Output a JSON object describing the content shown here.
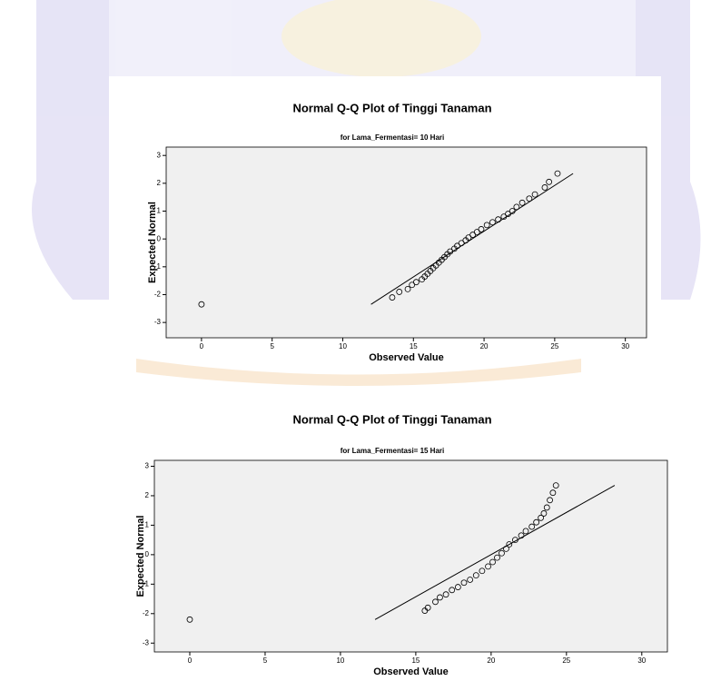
{
  "chart_data": [
    {
      "type": "scatter",
      "title": "Normal Q-Q Plot of Tinggi Tanaman",
      "subtitle": "for Lama_Fermentasi= 10 Hari",
      "x_label": "Observed Value",
      "y_label": "Expected Normal",
      "x": [
        0,
        13.5,
        14,
        14.6,
        14.9,
        15.2,
        15.6,
        15.8,
        16,
        16.2,
        16.4,
        16.6,
        16.8,
        17,
        17.2,
        17.4,
        17.6,
        17.9,
        18.1,
        18.4,
        18.7,
        18.9,
        19.2,
        19.5,
        19.8,
        20.2,
        20.6,
        21,
        21.4,
        21.7,
        22,
        22.3,
        22.7,
        23.2,
        23.6,
        24.3,
        24.6,
        25.2
      ],
      "values": [
        -2.35,
        -2.1,
        -1.9,
        -1.8,
        -1.65,
        -1.55,
        -1.45,
        -1.35,
        -1.25,
        -1.15,
        -1.05,
        -0.95,
        -0.85,
        -0.75,
        -0.65,
        -0.55,
        -0.45,
        -0.35,
        -0.25,
        -0.15,
        -0.05,
        0.05,
        0.15,
        0.25,
        0.35,
        0.5,
        0.6,
        0.7,
        0.8,
        0.9,
        1.0,
        1.15,
        1.3,
        1.45,
        1.6,
        1.85,
        2.05,
        2.35
      ],
      "line": {
        "x": [
          12,
          26.3
        ],
        "values": [
          -2.35,
          2.35
        ]
      },
      "xlim": [
        -2.5,
        31.5
      ],
      "ylim": [
        -3.55,
        3.3
      ],
      "xticks": [
        0,
        5,
        10,
        15,
        20,
        25,
        30
      ],
      "yticks": [
        -3,
        -2,
        -1,
        0,
        1,
        2,
        3
      ]
    },
    {
      "type": "scatter",
      "title": "Normal Q-Q Plot of Tinggi Tanaman",
      "subtitle": "for Lama_Fermentasi= 15 Hari",
      "x_label": "Observed Value",
      "y_label": "Expected Normal",
      "x": [
        0,
        15.6,
        15.8,
        16.3,
        16.6,
        17,
        17.4,
        17.8,
        18.2,
        18.6,
        19,
        19.4,
        19.8,
        20.1,
        20.4,
        20.7,
        21,
        21.2,
        21.6,
        22,
        22.3,
        22.7,
        23,
        23.3,
        23.5,
        23.7,
        23.9,
        24.1,
        24.3
      ],
      "values": [
        -2.2,
        -1.9,
        -1.8,
        -1.6,
        -1.45,
        -1.35,
        -1.2,
        -1.1,
        -0.95,
        -0.85,
        -0.7,
        -0.55,
        -0.4,
        -0.25,
        -0.1,
        0.05,
        0.2,
        0.35,
        0.5,
        0.65,
        0.8,
        0.95,
        1.1,
        1.25,
        1.4,
        1.6,
        1.85,
        2.1,
        2.35
      ],
      "line": {
        "x": [
          12.3,
          28.2
        ],
        "values": [
          -2.2,
          2.35
        ]
      },
      "xlim": [
        -2.35,
        31.7
      ],
      "ylim": [
        -3.3,
        3.2
      ],
      "xticks": [
        0,
        5,
        10,
        15,
        20,
        25,
        30
      ],
      "yticks": [
        -3,
        -2,
        -1,
        0,
        1,
        2,
        3
      ]
    }
  ]
}
